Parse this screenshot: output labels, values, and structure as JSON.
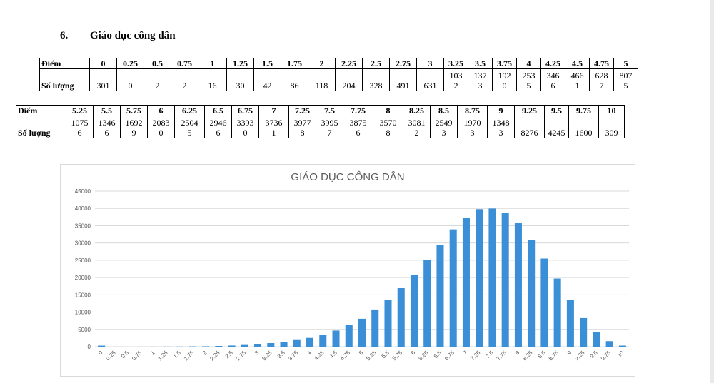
{
  "section": {
    "number": "6.",
    "title": "Giáo dục công dân"
  },
  "table1": {
    "header_label": "Điểm",
    "value_label": "Số lượng",
    "scores": [
      "0",
      "0.25",
      "0.5",
      "0.75",
      "1",
      "1.25",
      "1.5",
      "1.75",
      "2",
      "2.25",
      "2.5",
      "2.75",
      "3",
      "3.25",
      "3.5",
      "3.75",
      "4",
      "4.25",
      "4.5",
      "4.75",
      "5"
    ],
    "counts": [
      "301",
      "0",
      "2",
      "2",
      "16",
      "30",
      "42",
      "86",
      "118",
      "204",
      "328",
      "491",
      "631",
      "103\n2",
      "137\n3",
      "192\n0",
      "253\n5",
      "346\n6",
      "466\n1",
      "628\n7",
      "807\n5"
    ]
  },
  "table2": {
    "header_label": "Điểm",
    "value_label": "Số lượng",
    "scores": [
      "5.25",
      "5.5",
      "5.75",
      "6",
      "6.25",
      "6.5",
      "6.75",
      "7",
      "7.25",
      "7.5",
      "7.75",
      "8",
      "8.25",
      "8.5",
      "8.75",
      "9",
      "9.25",
      "9.5",
      "9.75",
      "10"
    ],
    "counts": [
      "1075\n6",
      "1346\n6",
      "1692\n9",
      "2083\n0",
      "2504\n5",
      "2946\n6",
      "3393\n0",
      "3736\n1",
      "3977\n8",
      "3995\n7",
      "3875\n6",
      "3570\n8",
      "3081\n2",
      "2549\n3",
      "1970\n3",
      "1348\n3",
      "8276",
      "4245",
      "1600",
      "309"
    ]
  },
  "chart_data": {
    "type": "bar",
    "title": "GIÁO DỤC CÔNG DÂN",
    "xlabel": "",
    "ylabel": "",
    "ylim": [
      0,
      45000
    ],
    "yticks": [
      0,
      5000,
      10000,
      15000,
      20000,
      25000,
      30000,
      35000,
      40000,
      45000
    ],
    "grid": true,
    "color": "#3a8fd6",
    "categories": [
      "0",
      "0.25",
      "0.5",
      "0.75",
      "1",
      "1.25",
      "1.5",
      "1.75",
      "2",
      "2.25",
      "2.5",
      "2.75",
      "3",
      "3.25",
      "3.5",
      "3.75",
      "4",
      "4.25",
      "4.5",
      "4.75",
      "5",
      "5.25",
      "5.5",
      "5.75",
      "6",
      "6.25",
      "6.5",
      "6.75",
      "7",
      "7.25",
      "7.5",
      "7.75",
      "8",
      "8.25",
      "8.5",
      "8.75",
      "9",
      "9.25",
      "9.5",
      "9.75",
      "10"
    ],
    "values": [
      301,
      0,
      2,
      2,
      16,
      30,
      42,
      86,
      118,
      204,
      328,
      491,
      631,
      1032,
      1373,
      1920,
      2535,
      3466,
      4661,
      6287,
      8075,
      10756,
      13466,
      16929,
      20830,
      25045,
      29466,
      33930,
      37361,
      39778,
      39957,
      38756,
      35708,
      30812,
      25493,
      19703,
      13483,
      8276,
      4245,
      1600,
      309
    ]
  }
}
